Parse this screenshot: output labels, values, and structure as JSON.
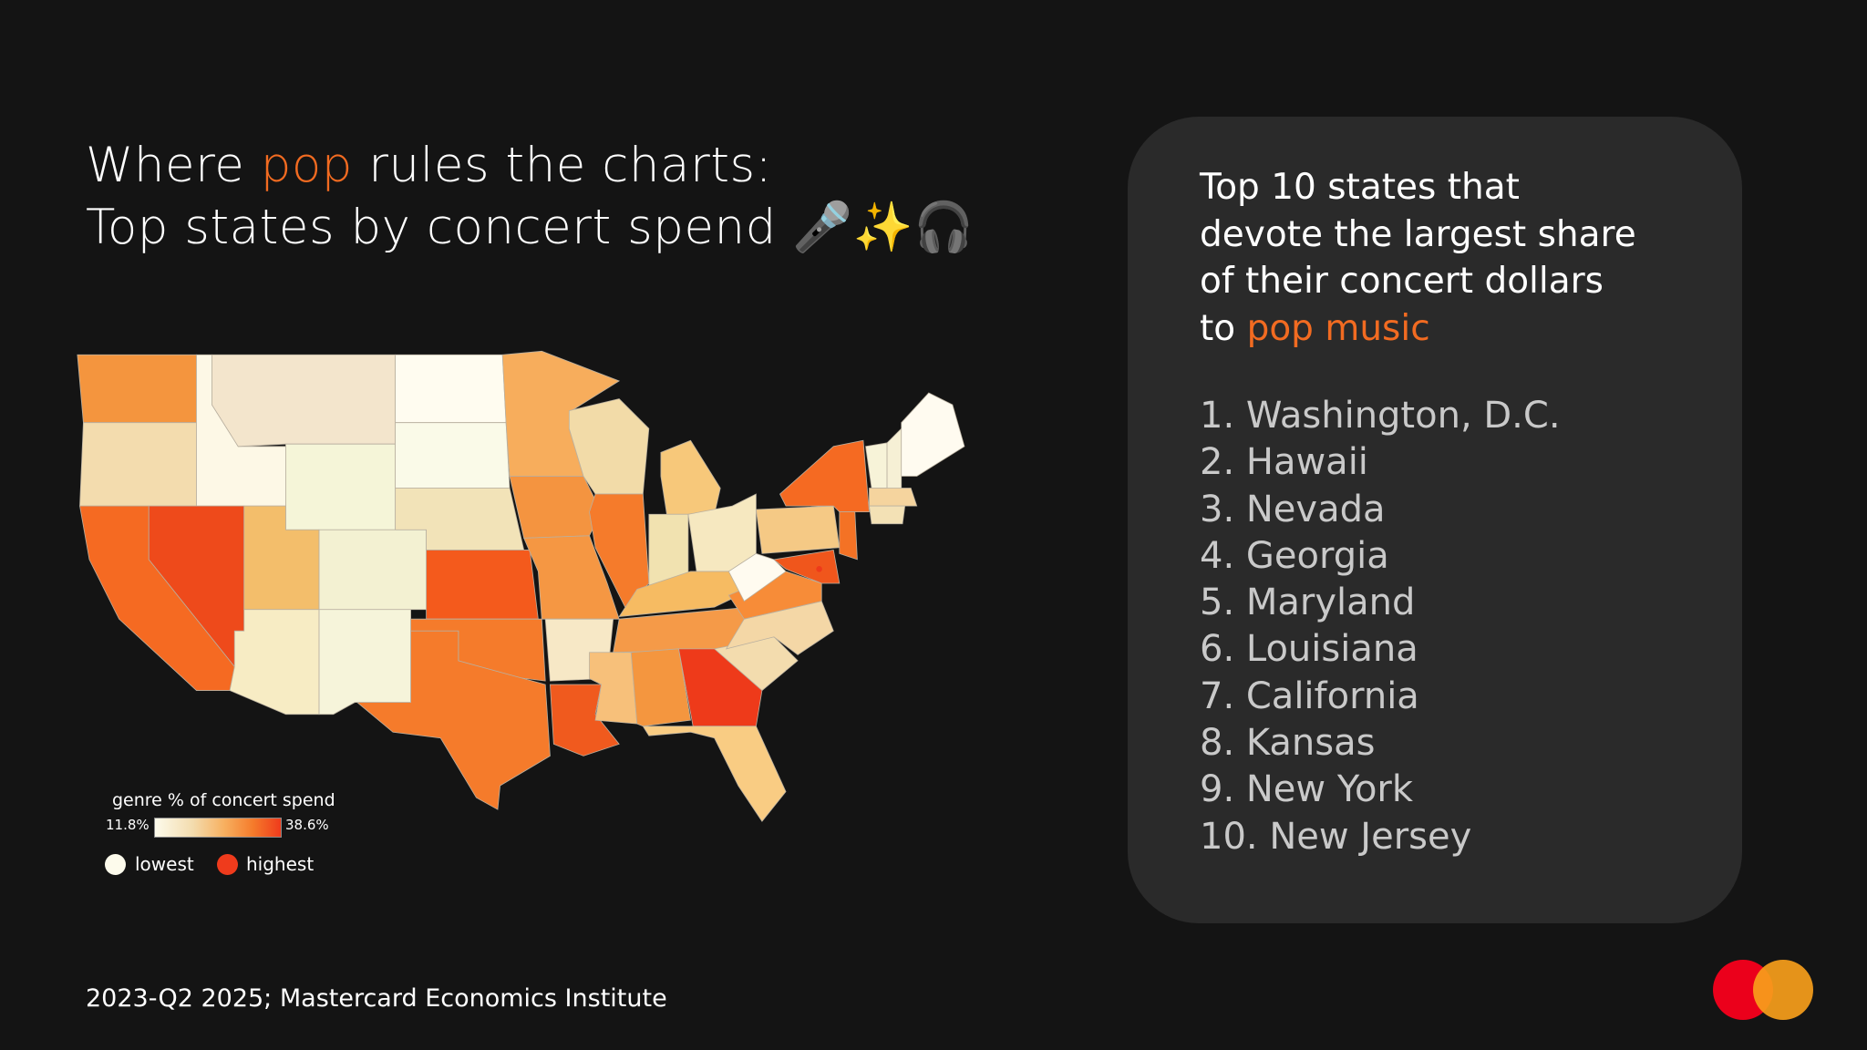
{
  "title": {
    "line1_pre": "Where ",
    "line1_accent": "pop",
    "line1_post": " rules the charts:",
    "line2": "Top states by concert spend",
    "emoji": "🎤✨🎧"
  },
  "panel": {
    "heading_lines": [
      "Top 10 states that",
      "devote the largest share",
      "of their concert dollars"
    ],
    "heading_last_pre": "to ",
    "heading_last_accent": "pop music",
    "items": [
      "1. Washington, D.C.",
      "2. Hawaii",
      "3. Nevada",
      "4. Georgia",
      "5. Maryland",
      "6. Louisiana",
      "7. California",
      "8. Kansas",
      "9. New York",
      "10. New Jersey"
    ]
  },
  "footer": "2023-Q2 2025; Mastercard Economics Institute",
  "colors": {
    "accent": "#f26b21",
    "low": "#fdfbec",
    "high": "#ef3b1c",
    "panel_bg": "#2a2a2a",
    "logo_red": "#eb001b",
    "logo_orange": "#f79e1b"
  },
  "chart_data": {
    "type": "choropleth",
    "legend": {
      "title": "genre % of concert spend",
      "min_label": "11.8%",
      "max_label": "38.6%",
      "low_label": "lowest",
      "high_label": "highest"
    },
    "range": [
      11.8,
      38.6
    ],
    "state_colors": {
      "WA": "#f4953e",
      "OR": "#f3dcae",
      "CA": "#f56a22",
      "ID": "#fdf8e6",
      "NV": "#ee4a1b",
      "MT": "#f3e5cc",
      "WY": "#f5f5d8",
      "UT": "#f3be6b",
      "AZ": "#f7ecc4",
      "CO": "#f3f1d2",
      "NM": "#f6f4da",
      "ND": "#fffcf0",
      "SD": "#fafae8",
      "NE": "#f2e3b8",
      "KS": "#f45a1c",
      "OK": "#f57b2b",
      "TX": "#f57b2b",
      "MN": "#f7ad5c",
      "IA": "#f49440",
      "MO": "#f59743",
      "WI": "#f2dba8",
      "IL": "#f57b2b",
      "MI": "#f7c87a",
      "IN": "#f1e2b0",
      "OH": "#f6e8c0",
      "KY": "#f6bb62",
      "TN": "#f59a48",
      "AR": "#f7e8c6",
      "LA": "#f05a1e",
      "MS": "#f7c07a",
      "AL": "#f4963f",
      "GA": "#ee3a1a",
      "FL": "#f9cc83",
      "SC": "#f3dcae",
      "NC": "#f4d7a6",
      "VA": "#f78c38",
      "WV": "#fffbf0",
      "PA": "#f5c985",
      "NY": "#f56a22",
      "MD": "#f0561c",
      "NJ": "#f47225",
      "VT": "#f7f3d8",
      "NH": "#f6f0d5",
      "ME": "#fffbf0",
      "MA": "#f5d49e",
      "CT": "#f3e1b5",
      "DC": "#ee3a1a"
    }
  }
}
